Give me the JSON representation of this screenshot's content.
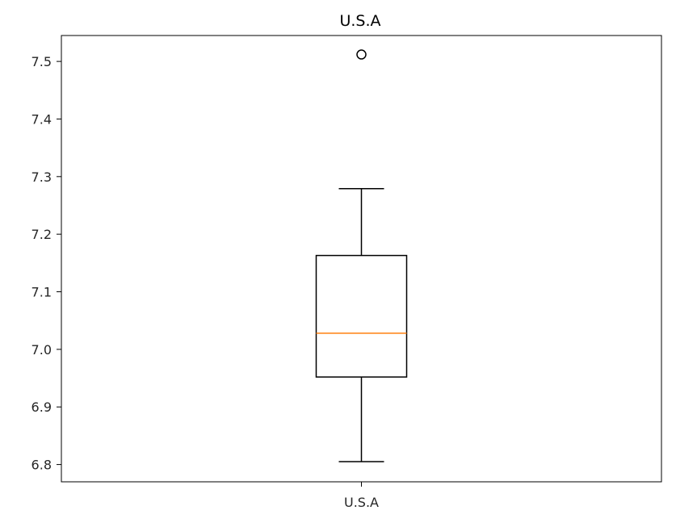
{
  "chart_data": {
    "type": "box",
    "title": "U.S.A",
    "xlabel": "",
    "ylabel": "",
    "categories": [
      "U.S.A"
    ],
    "ylim": [
      6.77,
      7.545
    ],
    "yticks": [
      6.8,
      6.9,
      7.0,
      7.1,
      7.2,
      7.3,
      7.4,
      7.5
    ],
    "ytick_labels": [
      "6.8",
      "6.9",
      "7.0",
      "7.1",
      "7.2",
      "7.3",
      "7.4",
      "7.5"
    ],
    "grid": false,
    "boxes": [
      {
        "category": "U.S.A",
        "whisker_low": 6.805,
        "q1": 6.952,
        "median": 7.028,
        "q3": 7.163,
        "whisker_high": 7.279,
        "outliers": [
          7.512
        ]
      }
    ],
    "colors": {
      "box": "#000000",
      "median": "#ff7f0e",
      "axis": "#000000"
    }
  }
}
